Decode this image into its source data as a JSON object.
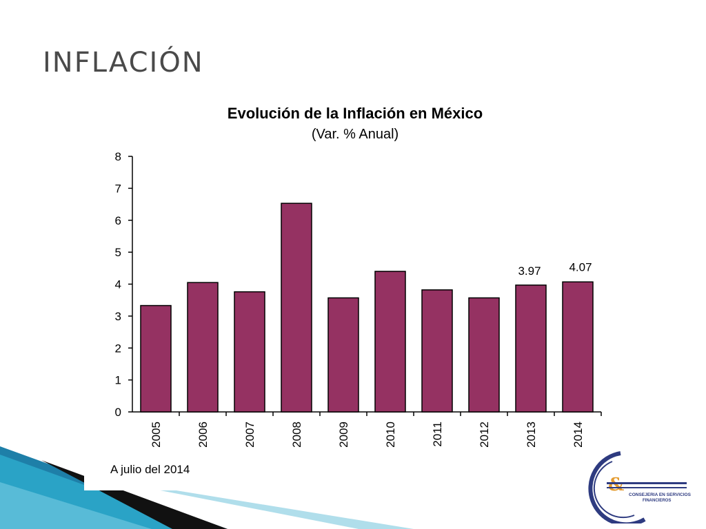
{
  "slide": {
    "title": "INFLACIÓN"
  },
  "footnote": "A julio del 2014",
  "logo": {
    "text_line1": "CONSEJERIA EN SERVICIOS",
    "text_line2": "FINANCIEROS",
    "mark": "&"
  },
  "colors": {
    "bar": "#953262",
    "bar_stroke": "#000000",
    "deco_blue": "#2aa3c6",
    "logo_navy": "#2e3b80",
    "logo_orange": "#e49b2f"
  },
  "chart_data": {
    "type": "bar",
    "title": "Evolución de la Inflación en México",
    "subtitle": "(Var. % Anual)",
    "xlabel": "",
    "ylabel": "",
    "categories": [
      "2005",
      "2006",
      "2007",
      "2008",
      "2009",
      "2010",
      "2011",
      "2012",
      "2013",
      "2014"
    ],
    "values": [
      3.33,
      4.05,
      3.76,
      6.53,
      3.57,
      4.4,
      3.82,
      3.57,
      3.97,
      4.07
    ],
    "data_labels": {
      "8": "3.97",
      "9": "4.07"
    },
    "ylim": [
      0,
      8
    ],
    "yticks": [
      "0",
      "1",
      "2",
      "3",
      "4",
      "5",
      "6",
      "7",
      "8"
    ],
    "grid": false,
    "legend": "none"
  }
}
